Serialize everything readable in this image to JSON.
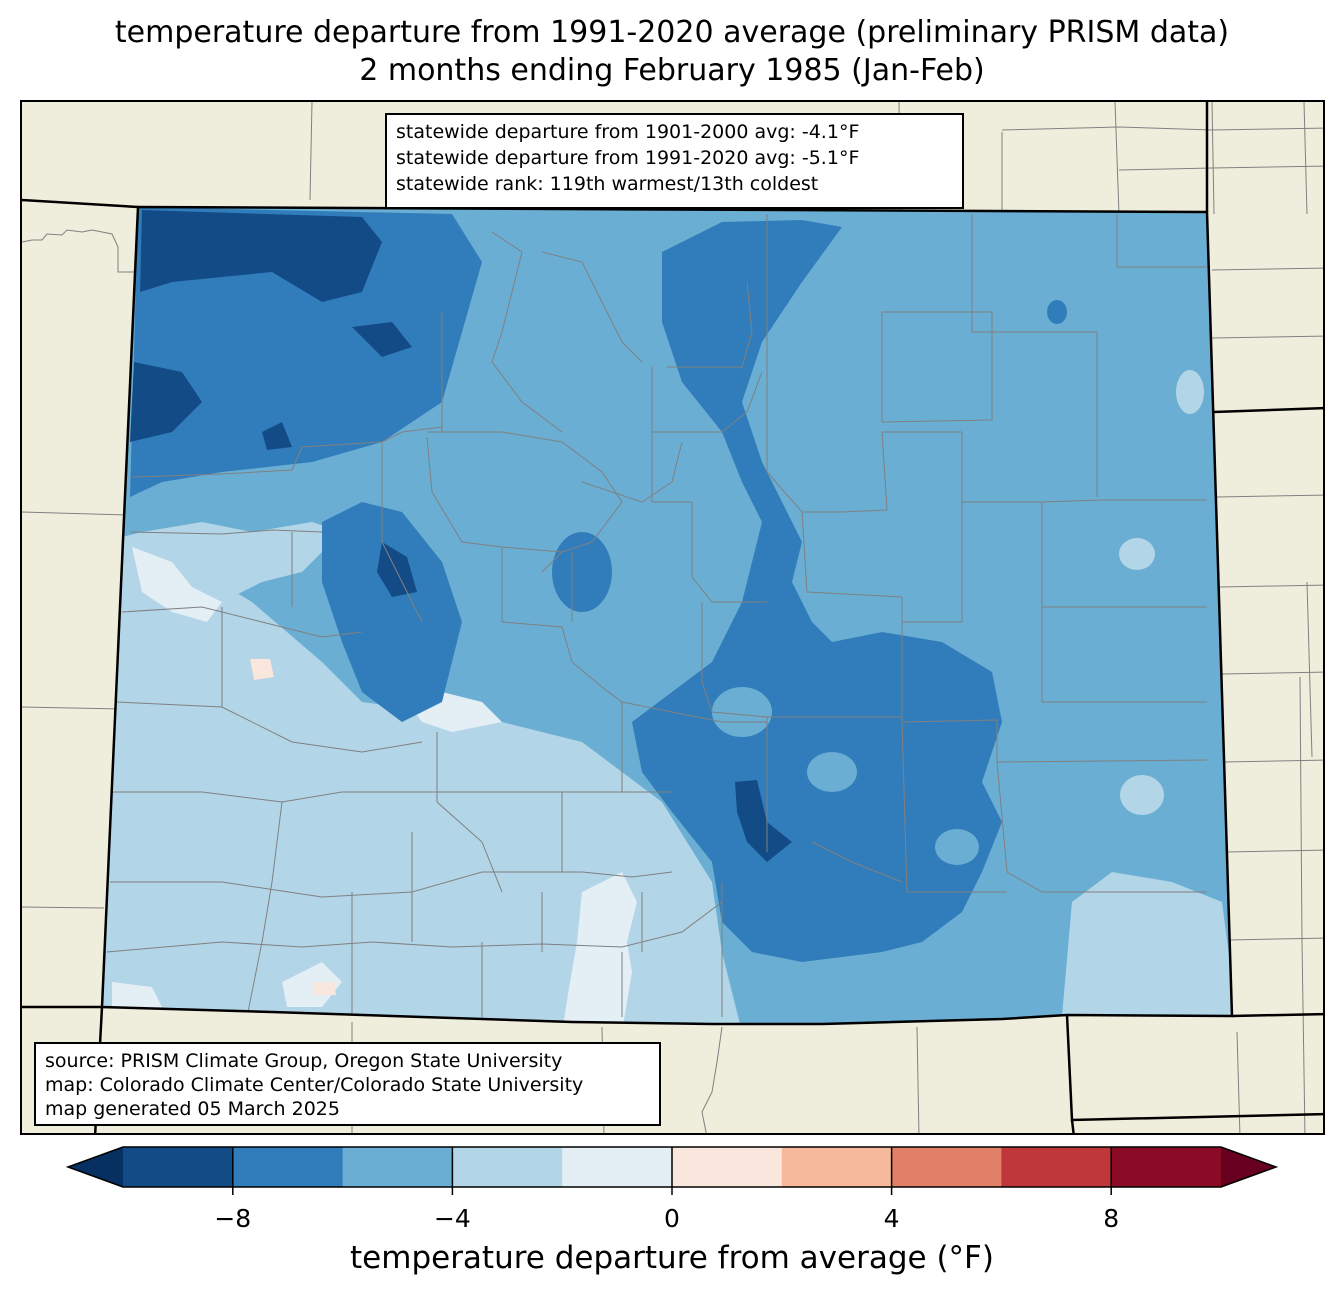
{
  "title": {
    "line1": "temperature departure from 1991-2020 average (preliminary PRISM data)",
    "line2": "2 months ending February 1985 (Jan-Feb)"
  },
  "stats": {
    "line1": "statewide departure from 1901-2000 avg: -4.1°F",
    "line2": "statewide departure from 1991-2020 avg: -5.1°F",
    "line3": "statewide rank: 119th warmest/13th coldest"
  },
  "source": {
    "line1": "source: PRISM Climate Group, Oregon State University",
    "line2": "map: Colorado Climate Center/Colorado State University",
    "line3": "map generated 05 March 2025"
  },
  "colorbar": {
    "label": "temperature departure from average (°F)",
    "ticks": [
      "−8",
      "−4",
      "0",
      "4",
      "8"
    ],
    "bins": [
      {
        "min": -10,
        "max": -8,
        "color": "#134b87"
      },
      {
        "min": -8,
        "max": -6,
        "color": "#317dbb"
      },
      {
        "min": -6,
        "max": -4,
        "color": "#6aaed3"
      },
      {
        "min": -4,
        "max": -2,
        "color": "#b2d5e8"
      },
      {
        "min": -2,
        "max": 0,
        "color": "#e3eef5"
      },
      {
        "min": 0,
        "max": 2,
        "color": "#f9e6dc"
      },
      {
        "min": 2,
        "max": 4,
        "color": "#f7b99c"
      },
      {
        "min": 4,
        "max": 6,
        "color": "#e17f67"
      },
      {
        "min": 6,
        "max": 8,
        "color": "#bf363b"
      },
      {
        "min": 8,
        "max": 10,
        "color": "#8a0b25"
      }
    ],
    "under_color": "#053061",
    "over_color": "#67001f"
  },
  "map_colors": {
    "land_outside": "#efeedc",
    "county_lines": "#808080",
    "state_lines": "#000000"
  }
}
